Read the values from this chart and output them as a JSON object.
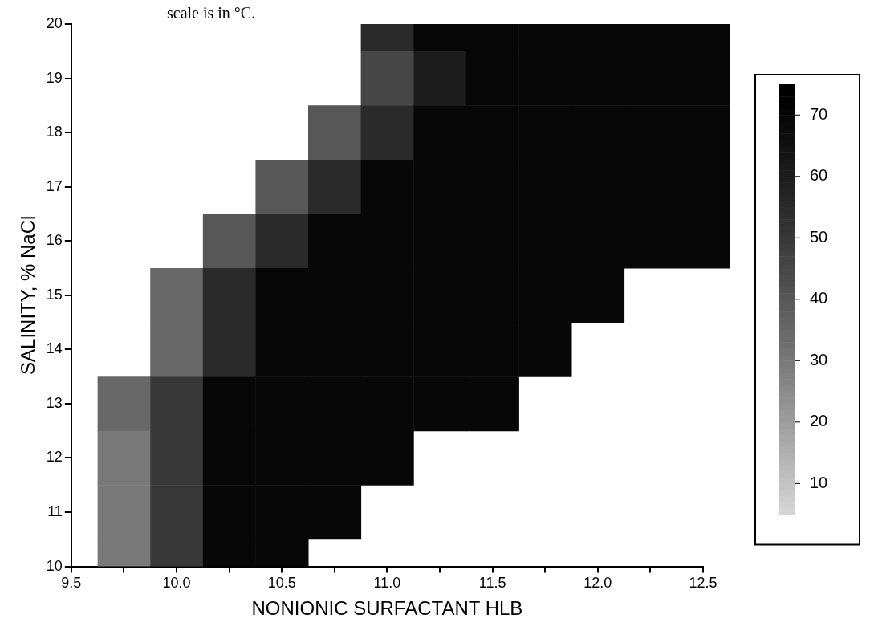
{
  "chart_data": {
    "type": "heatmap",
    "annotations": [
      "scale is in °C."
    ],
    "xlabel": "NONIONIC SURFACTANT HLB",
    "ylabel": "SALINITY, % NaCl",
    "categories": [
      "9.5",
      null,
      "10.0",
      null,
      "10.5",
      null,
      "11.0",
      null,
      "11.5",
      null,
      "12.0",
      null,
      "12.5"
    ],
    "y_categories": [
      "20",
      "19",
      "18",
      "17",
      "16",
      "15",
      "14",
      "13",
      "12",
      "11",
      "10"
    ],
    "cells": [
      [
        null,
        null,
        null,
        null,
        null,
        null,
        55,
        70,
        70,
        70,
        70,
        70,
        70
      ],
      [
        null,
        null,
        null,
        null,
        null,
        null,
        45,
        60,
        70,
        70,
        70,
        70,
        70
      ],
      [
        null,
        null,
        null,
        null,
        null,
        40,
        55,
        70,
        70,
        70,
        70,
        70,
        70
      ],
      [
        null,
        null,
        null,
        null,
        40,
        55,
        70,
        70,
        70,
        70,
        70,
        70,
        70
      ],
      [
        null,
        null,
        null,
        40,
        55,
        70,
        70,
        70,
        70,
        70,
        70,
        70,
        70
      ],
      [
        null,
        null,
        35,
        55,
        70,
        70,
        70,
        70,
        70,
        70,
        70,
        null,
        null
      ],
      [
        null,
        null,
        35,
        55,
        70,
        70,
        70,
        70,
        70,
        70,
        null,
        null,
        null
      ],
      [
        null,
        35,
        50,
        70,
        70,
        70,
        70,
        70,
        70,
        null,
        null,
        null,
        null
      ],
      [
        null,
        30,
        50,
        70,
        70,
        70,
        70,
        null,
        null,
        null,
        null,
        null,
        null
      ],
      [
        null,
        30,
        50,
        70,
        70,
        70,
        null,
        null,
        null,
        null,
        null,
        null,
        null
      ],
      [
        null,
        30,
        50,
        70,
        70,
        null,
        null,
        null,
        null,
        null,
        null,
        null,
        null
      ]
    ],
    "clim": [
      5,
      75
    ],
    "cticks": [
      10,
      20,
      30,
      40,
      50,
      60,
      70
    ]
  }
}
